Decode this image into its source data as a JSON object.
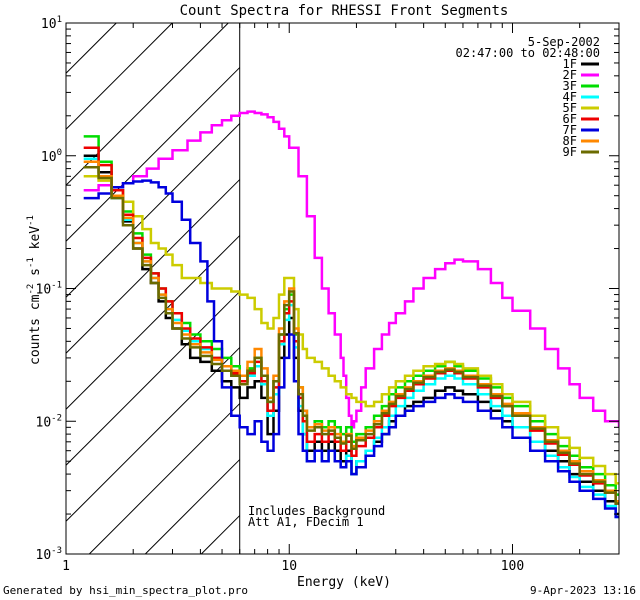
{
  "chart_data": {
    "type": "line",
    "title": "Count Spectra for RHESSI Front Segments",
    "xlabel": "Energy (keV)",
    "ylabel_parts": [
      "counts cm",
      "-2",
      " s",
      "-1",
      " keV",
      "-1"
    ],
    "xscale": "log",
    "yscale": "log",
    "xlim": [
      1,
      300
    ],
    "ylim": [
      0.001,
      10
    ],
    "x_ticks": [
      {
        "value": 1,
        "label": "1"
      },
      {
        "value": 10,
        "label": "10"
      },
      {
        "value": 100,
        "label": "100"
      }
    ],
    "y_ticks": [
      {
        "value": 0.001,
        "base": "10",
        "exp": "-3"
      },
      {
        "value": 0.01,
        "base": "10",
        "exp": "-2"
      },
      {
        "value": 0.1,
        "base": "10",
        "exp": "-1"
      },
      {
        "value": 1,
        "base": "10",
        "exp": "0"
      },
      {
        "value": 10,
        "base": "10",
        "exp": "1"
      }
    ],
    "date": "5-Sep-2002",
    "time_range": "02:47:00 to 02:48:00",
    "annotations": [
      "Includes Background",
      "Att A1, FDecim 1"
    ],
    "threshold_energy": 6,
    "series": [
      {
        "name": "1F",
        "color": "#000000",
        "x": [
          1.2,
          1.4,
          1.6,
          1.8,
          2.0,
          2.2,
          2.4,
          2.6,
          2.8,
          3.0,
          3.3,
          3.6,
          4.0,
          4.5,
          5.0,
          5.5,
          6.0,
          6.5,
          7.0,
          7.5,
          8.0,
          8.5,
          9.0,
          9.5,
          10.0,
          10.5,
          11.0,
          11.5,
          12.0,
          13,
          14,
          15,
          16,
          17,
          18,
          19,
          20,
          22,
          24,
          26,
          28,
          30,
          33,
          36,
          40,
          45,
          50,
          55,
          60,
          70,
          80,
          90,
          100,
          120,
          140,
          160,
          180,
          200,
          230,
          260,
          290
        ],
        "y": [
          1.0,
          0.75,
          0.5,
          0.32,
          0.2,
          0.14,
          0.11,
          0.08,
          0.06,
          0.05,
          0.038,
          0.03,
          0.028,
          0.024,
          0.02,
          0.018,
          0.015,
          0.018,
          0.02,
          0.015,
          0.008,
          0.012,
          0.03,
          0.045,
          0.06,
          0.03,
          0.012,
          0.008,
          0.006,
          0.007,
          0.006,
          0.007,
          0.006,
          0.005,
          0.006,
          0.004,
          0.005,
          0.006,
          0.007,
          0.008,
          0.01,
          0.011,
          0.013,
          0.014,
          0.015,
          0.017,
          0.018,
          0.017,
          0.016,
          0.014,
          0.012,
          0.01,
          0.009,
          0.007,
          0.006,
          0.005,
          0.004,
          0.0035,
          0.003,
          0.0025,
          0.002
        ]
      },
      {
        "name": "2F",
        "color": "#ff00ff",
        "x": [
          1.2,
          1.4,
          1.6,
          1.8,
          2.0,
          2.3,
          2.6,
          3.0,
          3.5,
          4.0,
          4.5,
          5.0,
          5.5,
          6.0,
          6.5,
          7.0,
          7.5,
          8.0,
          8.5,
          9.0,
          9.5,
          10,
          11,
          12,
          13,
          14,
          15,
          16,
          17,
          17.5,
          18,
          18.5,
          19,
          19.5,
          20,
          21,
          22,
          24,
          26,
          28,
          30,
          33,
          36,
          40,
          45,
          50,
          55,
          60,
          70,
          80,
          90,
          100,
          120,
          140,
          160,
          180,
          200,
          230,
          260,
          300
        ],
        "y": [
          0.55,
          0.6,
          0.58,
          0.62,
          0.7,
          0.8,
          0.95,
          1.1,
          1.3,
          1.5,
          1.7,
          1.85,
          2.0,
          2.1,
          2.15,
          2.1,
          2.05,
          1.95,
          1.8,
          1.6,
          1.4,
          1.15,
          0.7,
          0.35,
          0.17,
          0.1,
          0.065,
          0.045,
          0.03,
          0.022,
          0.015,
          0.011,
          0.009,
          0.01,
          0.012,
          0.018,
          0.025,
          0.035,
          0.045,
          0.055,
          0.065,
          0.08,
          0.1,
          0.12,
          0.14,
          0.155,
          0.165,
          0.16,
          0.14,
          0.11,
          0.085,
          0.068,
          0.05,
          0.035,
          0.025,
          0.019,
          0.015,
          0.012,
          0.01,
          0.009
        ]
      },
      {
        "name": "3F",
        "color": "#00dd00",
        "x": [
          1.2,
          1.4,
          1.6,
          1.8,
          2.0,
          2.2,
          2.4,
          2.6,
          2.8,
          3.0,
          3.3,
          3.6,
          4.0,
          4.5,
          5.0,
          5.5,
          6.0,
          6.5,
          7.0,
          7.5,
          8.0,
          8.5,
          9.0,
          9.5,
          10.0,
          10.5,
          11.0,
          11.5,
          12.0,
          13,
          14,
          15,
          16,
          17,
          18,
          19,
          20,
          22,
          24,
          26,
          28,
          30,
          33,
          36,
          40,
          45,
          50,
          55,
          60,
          70,
          80,
          90,
          100,
          120,
          140,
          160,
          180,
          200,
          230,
          260,
          290
        ],
        "y": [
          1.4,
          0.9,
          0.55,
          0.38,
          0.26,
          0.18,
          0.13,
          0.1,
          0.08,
          0.065,
          0.055,
          0.045,
          0.04,
          0.035,
          0.03,
          0.026,
          0.022,
          0.025,
          0.03,
          0.022,
          0.014,
          0.02,
          0.045,
          0.07,
          0.09,
          0.045,
          0.018,
          0.012,
          0.009,
          0.01,
          0.009,
          0.01,
          0.009,
          0.008,
          0.009,
          0.007,
          0.008,
          0.009,
          0.011,
          0.013,
          0.016,
          0.018,
          0.02,
          0.022,
          0.024,
          0.026,
          0.028,
          0.026,
          0.024,
          0.021,
          0.018,
          0.015,
          0.013,
          0.01,
          0.008,
          0.0065,
          0.0055,
          0.0045,
          0.004,
          0.0033,
          0.0028
        ]
      },
      {
        "name": "4F",
        "color": "#00ffff",
        "x": [
          1.2,
          1.4,
          1.6,
          1.8,
          2.0,
          2.2,
          2.4,
          2.6,
          2.8,
          3.0,
          3.3,
          3.6,
          4.0,
          4.5,
          5.0,
          5.5,
          6.0,
          6.5,
          7.0,
          7.5,
          8.0,
          8.5,
          9.0,
          9.5,
          10.0,
          10.5,
          11.0,
          11.5,
          12.0,
          13,
          14,
          15,
          16,
          17,
          18,
          19,
          20,
          22,
          24,
          26,
          28,
          30,
          33,
          36,
          40,
          45,
          50,
          55,
          60,
          70,
          80,
          90,
          100,
          120,
          140,
          160,
          180,
          200,
          230,
          260,
          290
        ],
        "y": [
          0.95,
          0.7,
          0.48,
          0.33,
          0.22,
          0.16,
          0.12,
          0.09,
          0.07,
          0.058,
          0.048,
          0.04,
          0.035,
          0.03,
          0.026,
          0.022,
          0.02,
          0.022,
          0.026,
          0.019,
          0.011,
          0.016,
          0.038,
          0.058,
          0.075,
          0.036,
          0.013,
          0.008,
          0.005,
          0.006,
          0.005,
          0.006,
          0.005,
          0.0045,
          0.0055,
          0.004,
          0.005,
          0.006,
          0.0075,
          0.009,
          0.011,
          0.013,
          0.015,
          0.017,
          0.019,
          0.021,
          0.022,
          0.021,
          0.019,
          0.016,
          0.013,
          0.011,
          0.009,
          0.007,
          0.0055,
          0.0045,
          0.0038,
          0.0032,
          0.0028,
          0.0023,
          0.0019
        ]
      },
      {
        "name": "5F",
        "color": "#cccc00",
        "x": [
          1.2,
          1.4,
          1.6,
          1.8,
          2.0,
          2.2,
          2.4,
          2.6,
          2.8,
          3.0,
          3.3,
          3.6,
          4.0,
          4.5,
          5.0,
          5.5,
          6.0,
          6.5,
          7.0,
          7.5,
          8.0,
          8.5,
          9.0,
          9.5,
          10.0,
          10.5,
          11.0,
          11.5,
          12.0,
          13,
          14,
          15,
          16,
          17,
          18,
          19,
          20,
          22,
          24,
          26,
          28,
          30,
          33,
          36,
          40,
          45,
          50,
          55,
          60,
          70,
          80,
          90,
          100,
          120,
          140,
          160,
          180,
          200,
          230,
          260,
          290
        ],
        "y": [
          0.7,
          0.65,
          0.55,
          0.45,
          0.35,
          0.28,
          0.22,
          0.2,
          0.18,
          0.15,
          0.12,
          0.12,
          0.11,
          0.1,
          0.1,
          0.095,
          0.09,
          0.085,
          0.07,
          0.055,
          0.05,
          0.06,
          0.09,
          0.12,
          0.12,
          0.07,
          0.045,
          0.035,
          0.03,
          0.028,
          0.025,
          0.022,
          0.02,
          0.018,
          0.016,
          0.015,
          0.014,
          0.013,
          0.014,
          0.016,
          0.018,
          0.02,
          0.022,
          0.024,
          0.026,
          0.027,
          0.028,
          0.027,
          0.025,
          0.022,
          0.019,
          0.016,
          0.014,
          0.011,
          0.009,
          0.0075,
          0.0063,
          0.0053,
          0.0046,
          0.004,
          0.0034
        ]
      },
      {
        "name": "6F",
        "color": "#ee0000",
        "x": [
          1.2,
          1.4,
          1.6,
          1.8,
          2.0,
          2.2,
          2.4,
          2.6,
          2.8,
          3.0,
          3.3,
          3.6,
          4.0,
          4.5,
          5.0,
          5.5,
          6.0,
          6.5,
          7.0,
          7.5,
          8.0,
          8.5,
          9.0,
          9.5,
          10.0,
          10.5,
          11.0,
          11.5,
          12.0,
          13,
          14,
          15,
          16,
          17,
          18,
          19,
          20,
          22,
          24,
          26,
          28,
          30,
          33,
          36,
          40,
          45,
          50,
          55,
          60,
          70,
          80,
          90,
          100,
          120,
          140,
          160,
          180,
          200,
          230,
          260,
          290
        ],
        "y": [
          1.15,
          0.85,
          0.55,
          0.36,
          0.24,
          0.17,
          0.13,
          0.1,
          0.08,
          0.065,
          0.05,
          0.042,
          0.036,
          0.03,
          0.026,
          0.023,
          0.02,
          0.023,
          0.028,
          0.02,
          0.012,
          0.018,
          0.04,
          0.065,
          0.08,
          0.04,
          0.015,
          0.01,
          0.007,
          0.008,
          0.007,
          0.008,
          0.007,
          0.006,
          0.007,
          0.0055,
          0.0065,
          0.0075,
          0.009,
          0.011,
          0.013,
          0.015,
          0.017,
          0.019,
          0.021,
          0.023,
          0.024,
          0.023,
          0.021,
          0.018,
          0.015,
          0.013,
          0.011,
          0.0085,
          0.0068,
          0.0056,
          0.0047,
          0.0039,
          0.0034,
          0.0029,
          0.0024
        ]
      },
      {
        "name": "7F",
        "color": "#0000dd",
        "x": [
          1.2,
          1.4,
          1.6,
          1.8,
          2.0,
          2.2,
          2.4,
          2.6,
          2.8,
          3.0,
          3.3,
          3.6,
          4.0,
          4.3,
          4.6,
          5.0,
          5.5,
          6.0,
          6.5,
          7.0,
          7.5,
          8.0,
          8.5,
          9.0,
          9.5,
          10.0,
          10.5,
          11.0,
          11.5,
          12.0,
          13,
          14,
          15,
          16,
          17,
          18,
          19,
          20,
          22,
          24,
          26,
          28,
          30,
          33,
          36,
          40,
          45,
          50,
          55,
          60,
          70,
          80,
          90,
          100,
          120,
          140,
          160,
          180,
          200,
          230,
          260,
          290
        ],
        "y": [
          0.48,
          0.52,
          0.58,
          0.62,
          0.64,
          0.65,
          0.63,
          0.58,
          0.52,
          0.45,
          0.33,
          0.22,
          0.16,
          0.08,
          0.04,
          0.018,
          0.011,
          0.009,
          0.008,
          0.01,
          0.007,
          0.006,
          0.008,
          0.018,
          0.03,
          0.045,
          0.02,
          0.008,
          0.006,
          0.005,
          0.006,
          0.005,
          0.006,
          0.005,
          0.0045,
          0.005,
          0.004,
          0.0045,
          0.0055,
          0.0065,
          0.008,
          0.009,
          0.011,
          0.012,
          0.013,
          0.014,
          0.015,
          0.016,
          0.015,
          0.014,
          0.012,
          0.0105,
          0.009,
          0.0075,
          0.006,
          0.005,
          0.0042,
          0.0035,
          0.003,
          0.0026,
          0.0022,
          0.0019
        ]
      },
      {
        "name": "8F",
        "color": "#ff8800",
        "x": [
          1.2,
          1.4,
          1.6,
          1.8,
          2.0,
          2.2,
          2.4,
          2.6,
          2.8,
          3.0,
          3.3,
          3.6,
          4.0,
          4.5,
          5.0,
          5.5,
          6.0,
          6.5,
          7.0,
          7.5,
          8.0,
          8.5,
          9.0,
          9.5,
          10.0,
          10.5,
          11.0,
          11.5,
          12.0,
          13,
          14,
          15,
          16,
          17,
          18,
          19,
          20,
          22,
          24,
          26,
          28,
          30,
          33,
          36,
          40,
          45,
          50,
          55,
          60,
          70,
          80,
          90,
          100,
          120,
          140,
          160,
          180,
          200,
          230,
          260,
          290
        ],
        "y": [
          0.9,
          0.7,
          0.5,
          0.34,
          0.22,
          0.16,
          0.12,
          0.09,
          0.07,
          0.055,
          0.045,
          0.038,
          0.033,
          0.029,
          0.026,
          0.024,
          0.022,
          0.028,
          0.035,
          0.025,
          0.015,
          0.022,
          0.05,
          0.08,
          0.1,
          0.05,
          0.018,
          0.012,
          0.009,
          0.0095,
          0.0085,
          0.009,
          0.008,
          0.007,
          0.008,
          0.0065,
          0.0075,
          0.0085,
          0.01,
          0.012,
          0.014,
          0.016,
          0.018,
          0.02,
          0.022,
          0.024,
          0.025,
          0.024,
          0.022,
          0.019,
          0.016,
          0.0135,
          0.0115,
          0.009,
          0.0072,
          0.006,
          0.005,
          0.0042,
          0.0036,
          0.003,
          0.0025
        ]
      },
      {
        "name": "9F",
        "color": "#6b6b00",
        "x": [
          1.2,
          1.4,
          1.6,
          1.8,
          2.0,
          2.2,
          2.4,
          2.6,
          2.8,
          3.0,
          3.3,
          3.6,
          4.0,
          4.5,
          5.0,
          5.5,
          6.0,
          6.5,
          7.0,
          7.5,
          8.0,
          8.5,
          9.0,
          9.5,
          10.0,
          10.5,
          11.0,
          11.5,
          12.0,
          13,
          14,
          15,
          16,
          17,
          18,
          19,
          20,
          22,
          24,
          26,
          28,
          30,
          33,
          36,
          40,
          45,
          50,
          55,
          60,
          70,
          80,
          90,
          100,
          120,
          140,
          160,
          180,
          200,
          230,
          260,
          290
        ],
        "y": [
          0.82,
          0.68,
          0.48,
          0.3,
          0.2,
          0.15,
          0.11,
          0.085,
          0.065,
          0.05,
          0.042,
          0.036,
          0.031,
          0.027,
          0.024,
          0.022,
          0.019,
          0.024,
          0.03,
          0.022,
          0.014,
          0.02,
          0.045,
          0.075,
          0.095,
          0.046,
          0.016,
          0.011,
          0.0085,
          0.009,
          0.008,
          0.0085,
          0.0075,
          0.0068,
          0.0078,
          0.0062,
          0.0072,
          0.008,
          0.0095,
          0.0115,
          0.0135,
          0.0155,
          0.0175,
          0.0195,
          0.0215,
          0.0235,
          0.0245,
          0.0235,
          0.0215,
          0.0185,
          0.0155,
          0.013,
          0.011,
          0.0088,
          0.007,
          0.0058,
          0.0048,
          0.004,
          0.0035,
          0.0029,
          0.0024
        ]
      }
    ]
  },
  "footer": {
    "generated_by": "Generated by hsi_min_spectra_plot.pro",
    "timestamp": "9-Apr-2023 13:16"
  }
}
